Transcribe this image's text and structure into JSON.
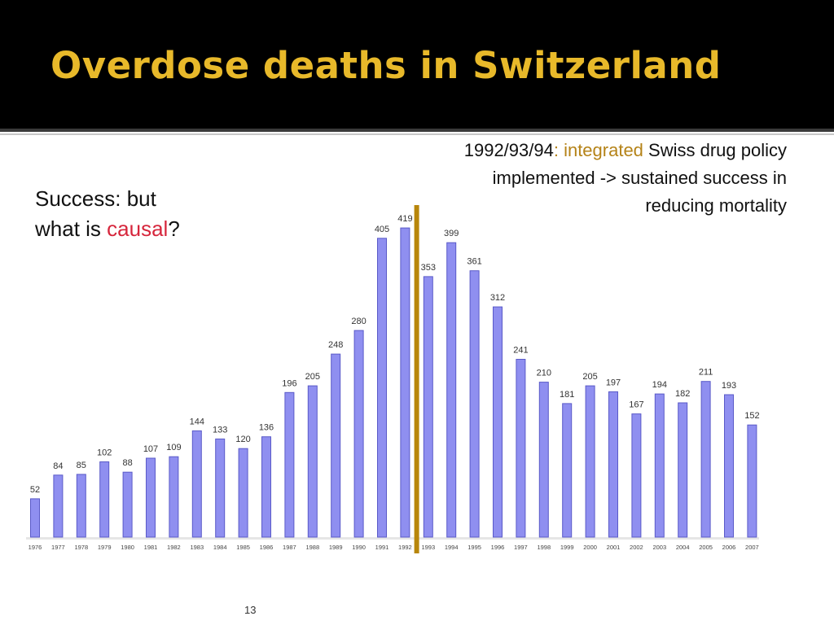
{
  "slide": {
    "title": "Overdose deaths in Switzerland",
    "side_note": {
      "line1": "Success: but",
      "line2_prefix": "what is ",
      "line2_highlight": "causal",
      "line2_suffix": "?"
    },
    "policy_note": {
      "prefix": "1992/93/94",
      "highlight": ": integrated",
      "rest": " Swiss drug policy implemented -> sustained success in reducing mortality"
    },
    "page_number": "13"
  },
  "colors": {
    "title": "#e8b92a",
    "bar_fill": "#8f8ff0",
    "bar_stroke": "#5a5ac8",
    "marker_line": "#b8860b",
    "highlight_red": "#d6263c",
    "highlight_gold": "#b58318"
  },
  "chart_data": {
    "type": "bar",
    "categories": [
      "1976",
      "1977",
      "1978",
      "1979",
      "1980",
      "1981",
      "1982",
      "1983",
      "1984",
      "1985",
      "1986",
      "1987",
      "1988",
      "1989",
      "1990",
      "1991",
      "1992",
      "1993",
      "1994",
      "1995",
      "1996",
      "1997",
      "1998",
      "1999",
      "2000",
      "2001",
      "2002",
      "2003",
      "2004",
      "2005",
      "2006",
      "2007"
    ],
    "values": [
      52,
      84,
      85,
      102,
      88,
      107,
      109,
      144,
      133,
      120,
      136,
      196,
      205,
      248,
      280,
      405,
      419,
      353,
      399,
      361,
      312,
      241,
      210,
      181,
      205,
      197,
      167,
      194,
      182,
      211,
      193,
      152
    ],
    "title": "",
    "xlabel": "",
    "ylabel": "",
    "ylim": [
      0,
      450
    ],
    "data_labels": true,
    "grid": false,
    "marker_line_after": "1992"
  }
}
